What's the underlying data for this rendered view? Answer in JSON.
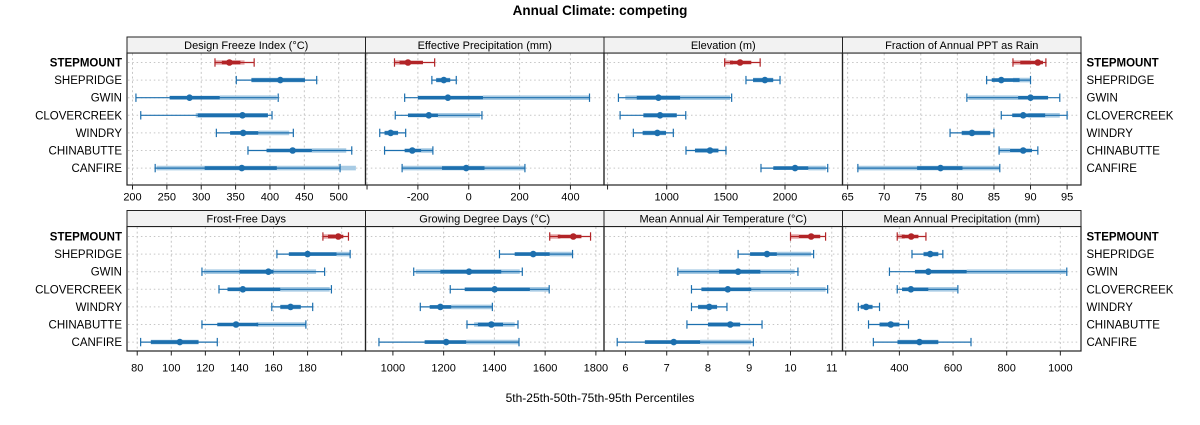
{
  "title": "Annual Climate: competing",
  "caption": "5th-25th-50th-75th-95th Percentiles",
  "colors": {
    "highlight": "#B22427",
    "highlight_light": "#E7ABAD",
    "series": "#1C6FAE",
    "series_light": "#A8CBE4",
    "strip_bg": "#F2F2F2",
    "grid_line": "#C6C6C6",
    "border": "#222222"
  },
  "chart_data": {
    "type": "dotplot-intervals",
    "percentiles": [
      "5th",
      "25th",
      "50th",
      "75th",
      "95th"
    ],
    "sites": [
      "STEPMOUNT",
      "SHEPRIDGE",
      "GWIN",
      "CLOVERCREEK",
      "WINDRY",
      "CHINABUTTE",
      "CANFIRE"
    ],
    "highlight_site": "STEPMOUNT",
    "grid": {
      "rows": 2,
      "cols": 4
    },
    "panels": [
      {
        "label": "Design Freeze Index (°C)",
        "slug": "design-freeze-index",
        "grid_row": 0,
        "axis": {
          "range": [
            192,
            539
          ],
          "ticks": [
            200,
            250,
            300,
            350,
            400,
            450,
            500
          ],
          "minor_ticks": []
        },
        "rows": [
          {
            "site": "STEPMOUNT",
            "p": [
              320,
              330,
              341,
              357,
              377
            ],
            "band": [
              320,
              363
            ]
          },
          {
            "site": "SHEPRIDGE",
            "p": [
              351,
              373,
              415,
              451,
              468
            ],
            "band": [
              373,
              451
            ]
          },
          {
            "site": "GWIN",
            "p": [
              205,
              254,
              283,
              327,
              412
            ],
            "band": [
              327,
              410
            ]
          },
          {
            "site": "CLOVERCREEK",
            "p": [
              212,
              295,
              360,
              397,
              403
            ],
            "band": [
              292,
              397
            ]
          },
          {
            "site": "WINDRY",
            "p": [
              322,
              342,
              361,
              383,
              434
            ],
            "band": [
              383,
              428
            ]
          },
          {
            "site": "CHINABUTTE",
            "p": [
              368,
              395,
              433,
              461,
              519
            ],
            "band": [
              461,
              511
            ]
          },
          {
            "site": "CANFIRE",
            "p": [
              233,
              305,
              359,
              410,
              502
            ],
            "band": [
              235,
              525
            ]
          }
        ]
      },
      {
        "label": "Effective Precipitation (mm)",
        "slug": "effective-precipitation",
        "grid_row": 0,
        "axis": {
          "range": [
            -406,
            532
          ],
          "ticks": [
            -200,
            0,
            200,
            400
          ],
          "minor_ticks": [
            -400
          ]
        },
        "rows": [
          {
            "site": "STEPMOUNT",
            "p": [
              -292,
              -272,
              -239,
              -180,
              -134
            ],
            "band": [
              -291,
              -245
            ]
          },
          {
            "site": "SHEPRIDGE",
            "p": [
              -145,
              -128,
              -98,
              -73,
              -49
            ],
            "band": [
              -128,
              -73
            ]
          },
          {
            "site": "GWIN",
            "p": [
              -252,
              -200,
              -82,
              56,
              475
            ],
            "band": [
              56,
              473
            ]
          },
          {
            "site": "CLOVERCREEK",
            "p": [
              -289,
              -239,
              -157,
              -121,
              52
            ],
            "band": [
              -121,
              45
            ]
          },
          {
            "site": "WINDRY",
            "p": [
              -350,
              -331,
              -307,
              -278,
              -248
            ],
            "band": [
              -331,
              -278
            ]
          },
          {
            "site": "CHINABUTTE",
            "p": [
              -331,
              -252,
              -222,
              -187,
              -141
            ],
            "band": [
              -187,
              -143
            ]
          },
          {
            "site": "CANFIRE",
            "p": [
              -262,
              -105,
              -10,
              62,
              221
            ],
            "band": [
              -260,
              220
            ]
          }
        ]
      },
      {
        "label": "Elevation (m)",
        "slug": "elevation",
        "grid_row": 0,
        "axis": {
          "range": [
            470,
            2486
          ],
          "ticks": [
            1000,
            1500,
            2000
          ],
          "minor_ticks": [
            500
          ]
        },
        "rows": [
          {
            "site": "STEPMOUNT",
            "p": [
              1490,
              1535,
              1620,
              1715,
              1790
            ],
            "band": [
              1490,
              1560
            ]
          },
          {
            "site": "SHEPRIDGE",
            "p": [
              1670,
              1730,
              1830,
              1900,
              1958
            ],
            "band": [
              1730,
              1900
            ]
          },
          {
            "site": "GWIN",
            "p": [
              592,
              747,
              930,
              1113,
              1549
            ],
            "band": [
              650,
              1535
            ]
          },
          {
            "site": "CLOVERCREEK",
            "p": [
              606,
              803,
              944,
              1085,
              1161
            ],
            "band": [
              803,
              1085
            ]
          },
          {
            "site": "WINDRY",
            "p": [
              718,
              797,
              921,
              994,
              1056
            ],
            "band": [
              797,
              994
            ]
          },
          {
            "site": "CHINABUTTE",
            "p": [
              1163,
              1239,
              1366,
              1437,
              1501
            ],
            "band": [
              1239,
              1437
            ]
          },
          {
            "site": "CANFIRE",
            "p": [
              1797,
              1901,
              2085,
              2197,
              2361
            ],
            "band": [
              2197,
              2345
            ]
          }
        ]
      },
      {
        "label": "Fraction of Annual PPT as Rain",
        "slug": "fraction-ppt-rain",
        "grid_row": 0,
        "axis": {
          "range": [
            64.3,
            96.9
          ],
          "ticks": [
            65,
            70,
            75,
            80,
            85,
            90,
            95
          ],
          "minor_ticks": []
        },
        "rows": [
          {
            "site": "STEPMOUNT",
            "p": [
              87.6,
              88.6,
              91,
              91.7,
              92.1
            ],
            "band": [
              87.6,
              90
            ]
          },
          {
            "site": "SHEPRIDGE",
            "p": [
              84,
              84.7,
              86,
              88.5,
              90
            ],
            "band": [
              87.6,
              90
            ]
          },
          {
            "site": "GWIN",
            "p": [
              81.3,
              88.3,
              90,
              92.4,
              94
            ],
            "band": [
              81.5,
              88.3
            ]
          },
          {
            "site": "CLOVERCREEK",
            "p": [
              86,
              87.5,
              89,
              92,
              95
            ],
            "band": [
              89.7,
              94
            ]
          },
          {
            "site": "WINDRY",
            "p": [
              79,
              80.6,
              82,
              84.5,
              85
            ],
            "band": [
              80.6,
              84.5
            ]
          },
          {
            "site": "CHINABUTTE",
            "p": [
              85.7,
              87.2,
              89,
              90.2,
              91
            ],
            "band": [
              85.7,
              87.2
            ]
          },
          {
            "site": "CANFIRE",
            "p": [
              66.4,
              74.5,
              77.7,
              80.7,
              85.8
            ],
            "band": [
              66.5,
              85.8
            ]
          }
        ]
      },
      {
        "label": "Frost-Free Days",
        "slug": "frost-free-days",
        "grid_row": 1,
        "axis": {
          "range": [
            74,
            214
          ],
          "ticks": [
            80,
            100,
            120,
            140,
            160,
            180
          ],
          "minor_ticks": [
            200
          ]
        },
        "rows": [
          {
            "site": "STEPMOUNT",
            "p": [
              189,
              192,
              198,
              201,
              204
            ],
            "band": [
              189,
              196
            ]
          },
          {
            "site": "SHEPRIDGE",
            "p": [
              162,
              169,
              180,
              197,
              205
            ],
            "band": [
              197,
              205
            ]
          },
          {
            "site": "GWIN",
            "p": [
              118,
              140,
              157,
              160,
              190
            ],
            "band": [
              119,
              185
            ]
          },
          {
            "site": "CLOVERCREEK",
            "p": [
              128,
              133,
              142,
              164,
              194
            ],
            "band": [
              164,
              193
            ]
          },
          {
            "site": "WINDRY",
            "p": [
              159,
              164,
              170,
              176,
              183
            ],
            "band": [
              164,
              176
            ]
          },
          {
            "site": "CHINABUTTE",
            "p": [
              118,
              127,
              138,
              151,
              179
            ],
            "band": [
              150,
              179
            ]
          },
          {
            "site": "CANFIRE",
            "p": [
              82,
              88,
              105,
              116,
              127
            ],
            "band": [
              88,
              116
            ]
          }
        ]
      },
      {
        "label": "Growing Degree Days (°C)",
        "slug": "growing-degree-days",
        "grid_row": 1,
        "axis": {
          "range": [
            892,
            1832
          ],
          "ticks": [
            1000,
            1200,
            1400,
            1600,
            1800
          ],
          "minor_ticks": []
        },
        "rows": [
          {
            "site": "STEPMOUNT",
            "p": [
              1618,
              1650,
              1711,
              1743,
              1779
            ],
            "band": [
              1618,
              1660
            ]
          },
          {
            "site": "SHEPRIDGE",
            "p": [
              1420,
              1480,
              1553,
              1618,
              1708
            ],
            "band": [
              1618,
              1705
            ]
          },
          {
            "site": "GWIN",
            "p": [
              1082,
              1187,
              1300,
              1427,
              1510
            ],
            "band": [
              1090,
              1500
            ]
          },
          {
            "site": "CLOVERCREEK",
            "p": [
              1226,
              1283,
              1401,
              1540,
              1616
            ],
            "band": [
              1540,
              1614
            ]
          },
          {
            "site": "WINDRY",
            "p": [
              1108,
              1145,
              1187,
              1230,
              1392
            ],
            "band": [
              1230,
              1390
            ]
          },
          {
            "site": "CHINABUTTE",
            "p": [
              1292,
              1335,
              1388,
              1434,
              1493
            ],
            "band": [
              1320,
              1480
            ]
          },
          {
            "site": "CANFIRE",
            "p": [
              945,
              1125,
              1210,
              1289,
              1497
            ],
            "band": [
              1289,
              1495
            ]
          }
        ]
      },
      {
        "label": "Mean Annual Air Temperature (°C)",
        "slug": "mean-annual-air-temperature",
        "grid_row": 1,
        "axis": {
          "range": [
            5.48,
            11.26
          ],
          "ticks": [
            6,
            7,
            8,
            9,
            10,
            11
          ],
          "minor_ticks": []
        },
        "rows": [
          {
            "site": "STEPMOUNT",
            "p": [
              10.0,
              10.2,
              10.5,
              10.72,
              10.85
            ],
            "band": [
              10.0,
              10.2
            ]
          },
          {
            "site": "SHEPRIDGE",
            "p": [
              8.73,
              9.02,
              9.43,
              9.67,
              10.56
            ],
            "band": [
              9.67,
              10.5
            ]
          },
          {
            "site": "GWIN",
            "p": [
              7.27,
              8.27,
              8.73,
              9.27,
              10.18
            ],
            "band": [
              7.3,
              10.1
            ]
          },
          {
            "site": "CLOVERCREEK",
            "p": [
              7.6,
              7.84,
              8.48,
              9.05,
              10.9
            ],
            "band": [
              9.05,
              10.85
            ]
          },
          {
            "site": "WINDRY",
            "p": [
              7.6,
              7.76,
              8.03,
              8.22,
              8.46
            ],
            "band": [
              7.76,
              8.22
            ]
          },
          {
            "site": "CHINABUTTE",
            "p": [
              7.49,
              8.0,
              8.54,
              8.78,
              9.31
            ],
            "band": [
              8.0,
              8.78
            ]
          },
          {
            "site": "CANFIRE",
            "p": [
              5.8,
              6.47,
              7.17,
              7.81,
              9.1
            ],
            "band": [
              7.81,
              9.05
            ]
          }
        ]
      },
      {
        "label": "Mean Annual Precipitation (mm)",
        "slug": "mean-annual-precipitation",
        "grid_row": 1,
        "axis": {
          "range": [
            188,
            1077
          ],
          "ticks": [
            400,
            600,
            800,
            1000
          ],
          "minor_ticks": [
            200
          ]
        },
        "rows": [
          {
            "site": "STEPMOUNT",
            "p": [
              392,
              409,
              444,
              471,
              499
            ],
            "band": [
              392,
              420
            ]
          },
          {
            "site": "SHEPRIDGE",
            "p": [
              447,
              490,
              515,
              545,
              562
            ],
            "band": [
              490,
              545
            ]
          },
          {
            "site": "GWIN",
            "p": [
              363,
              458,
              508,
              651,
              1024
            ],
            "band": [
              651,
              1020
            ]
          },
          {
            "site": "CLOVERCREEK",
            "p": [
              392,
              410,
              443,
              508,
              618
            ],
            "band": [
              508,
              615
            ]
          },
          {
            "site": "WINDRY",
            "p": [
              247,
              256,
              276,
              300,
              326
            ],
            "band": [
              256,
              300
            ]
          },
          {
            "site": "CHINABUTTE",
            "p": [
              285,
              326,
              368,
              400,
              434
            ],
            "band": [
              326,
              400
            ]
          },
          {
            "site": "CANFIRE",
            "p": [
              303,
              393,
              475,
              545,
              667
            ],
            "band": [
              393,
              545
            ]
          }
        ]
      }
    ]
  }
}
